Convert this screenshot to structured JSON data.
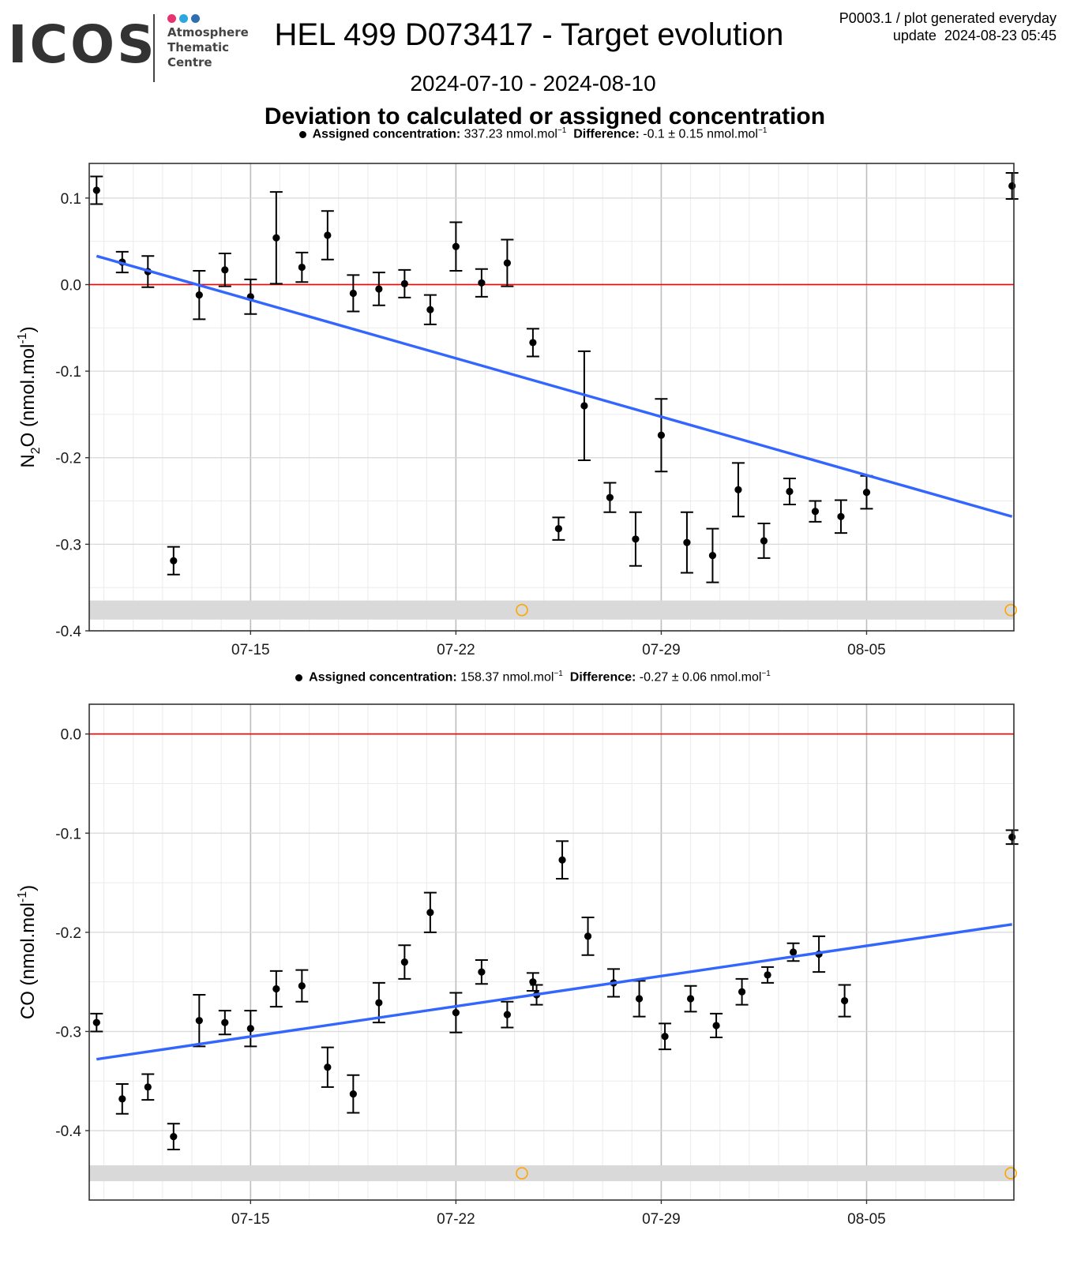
{
  "header": {
    "logo_text": "ICOS",
    "logo_subtitle": [
      "Atmosphere",
      "Thematic",
      "Centre"
    ],
    "logo_dot_colors": [
      "#e8336e",
      "#2fa7de",
      "#2f6fb0"
    ],
    "title": "HEL 499 D073417 - Target evolution",
    "corner_line1": "P0003.1 / plot generated everyday",
    "corner_line2": "update  2024-08-23 05:45",
    "date_range": "2024-07-10 - 2024-08-10",
    "subtitle": "Deviation to calculated or assigned concentration"
  },
  "colors": {
    "points": "#000000",
    "trend": "#3366ff",
    "zero": "#ff0000",
    "flag": "#ffa500",
    "band": "#d9d9d9"
  },
  "chart_data": [
    {
      "type": "scatter",
      "legend": {
        "assigned_label": "Assigned concentration:",
        "assigned_value": "337.23 nmol.mol",
        "diff_label": "Difference:",
        "diff_value": "-0.1 ± 0.15 nmol.mol",
        "unit_exp": "−1"
      },
      "ylabel_main": "N",
      "ylabel_sub": "2",
      "ylabel_rest": "O (nmol.mol",
      "ylabel_exp": "-1",
      "ylabel_close": ")",
      "ylim": [
        -0.4,
        0.14
      ],
      "yticks": [
        0.1,
        0.0,
        -0.1,
        -0.2,
        -0.3,
        -0.4
      ],
      "ytick_labels": [
        "0.1",
        "0.0",
        "-0.1",
        "-0.2",
        "-0.3",
        "-0.4"
      ],
      "xlim": [
        "2024-07-09T12:00",
        "2024-08-10T00:30"
      ],
      "xticks": [
        "2024-07-15",
        "2024-07-22",
        "2024-07-29",
        "2024-08-05"
      ],
      "xtick_labels": [
        "07-15",
        "07-22",
        "07-29",
        "08-05"
      ],
      "points": [
        {
          "x": "2024-07-09T18:00",
          "y": 0.109,
          "err": 0.016
        },
        {
          "x": "2024-07-10T15:00",
          "y": 0.026,
          "err": 0.012
        },
        {
          "x": "2024-07-11T12:00",
          "y": 0.015,
          "err": 0.018
        },
        {
          "x": "2024-07-12T09:00",
          "y": -0.319,
          "err": 0.016
        },
        {
          "x": "2024-07-13T06:00",
          "y": -0.012,
          "err": 0.028
        },
        {
          "x": "2024-07-14T03:00",
          "y": 0.017,
          "err": 0.019
        },
        {
          "x": "2024-07-15T00:00",
          "y": -0.014,
          "err": 0.02
        },
        {
          "x": "2024-07-15T21:00",
          "y": 0.054,
          "err": 0.053
        },
        {
          "x": "2024-07-16T18:00",
          "y": 0.02,
          "err": 0.017
        },
        {
          "x": "2024-07-17T15:00",
          "y": 0.057,
          "err": 0.028
        },
        {
          "x": "2024-07-18T12:00",
          "y": -0.01,
          "err": 0.021
        },
        {
          "x": "2024-07-19T09:00",
          "y": -0.005,
          "err": 0.019
        },
        {
          "x": "2024-07-20T06:00",
          "y": 0.001,
          "err": 0.016
        },
        {
          "x": "2024-07-21T03:00",
          "y": -0.029,
          "err": 0.017
        },
        {
          "x": "2024-07-22T00:00",
          "y": 0.044,
          "err": 0.028
        },
        {
          "x": "2024-07-22T21:00",
          "y": 0.002,
          "err": 0.016
        },
        {
          "x": "2024-07-23T18:00",
          "y": 0.025,
          "err": 0.027
        },
        {
          "x": "2024-07-24T15:00",
          "y": -0.067,
          "err": 0.016
        },
        {
          "x": "2024-07-25T12:00",
          "y": -0.282,
          "err": 0.013
        },
        {
          "x": "2024-07-26T09:00",
          "y": -0.14,
          "err": 0.063
        },
        {
          "x": "2024-07-27T06:00",
          "y": -0.246,
          "err": 0.017
        },
        {
          "x": "2024-07-28T03:00",
          "y": -0.294,
          "err": 0.031
        },
        {
          "x": "2024-07-29T00:00",
          "y": -0.174,
          "err": 0.042
        },
        {
          "x": "2024-07-29T21:00",
          "y": -0.298,
          "err": 0.035
        },
        {
          "x": "2024-07-30T18:00",
          "y": -0.313,
          "err": 0.031
        },
        {
          "x": "2024-07-31T15:00",
          "y": -0.237,
          "err": 0.031
        },
        {
          "x": "2024-08-01T12:00",
          "y": -0.296,
          "err": 0.02
        },
        {
          "x": "2024-08-02T09:00",
          "y": -0.239,
          "err": 0.015
        },
        {
          "x": "2024-08-03T06:00",
          "y": -0.262,
          "err": 0.012
        },
        {
          "x": "2024-08-04T03:00",
          "y": -0.268,
          "err": 0.019
        },
        {
          "x": "2024-08-05T00:00",
          "y": -0.24,
          "err": 0.019
        },
        {
          "x": "2024-08-09T23:00",
          "y": 0.114,
          "err": 0.015
        }
      ],
      "trend": [
        {
          "x": "2024-07-09T18:00",
          "y": 0.033
        },
        {
          "x": "2024-08-09T23:00",
          "y": -0.268
        }
      ],
      "band": {
        "y_low": -0.387,
        "y_high": -0.365
      },
      "flags": [
        {
          "x": "2024-07-24T06:00",
          "y": -0.376
        },
        {
          "x": "2024-08-09T22:00",
          "y": -0.376
        }
      ]
    },
    {
      "type": "scatter",
      "legend": {
        "assigned_label": "Assigned concentration:",
        "assigned_value": "158.37 nmol.mol",
        "diff_label": "Difference:",
        "diff_value": "-0.27 ± 0.06 nmol.mol",
        "unit_exp": "−1"
      },
      "ylabel_main": "CO (nmol.mol",
      "ylabel_sub": "",
      "ylabel_rest": "",
      "ylabel_exp": "-1",
      "ylabel_close": ")",
      "ylim": [
        -0.47,
        0.03
      ],
      "yticks": [
        0.0,
        -0.1,
        -0.2,
        -0.3,
        -0.4
      ],
      "ytick_labels": [
        "0.0",
        "-0.1",
        "-0.2",
        "-0.3",
        "-0.4"
      ],
      "xlim": [
        "2024-07-09T12:00",
        "2024-08-10T00:30"
      ],
      "xticks": [
        "2024-07-15",
        "2024-07-22",
        "2024-07-29",
        "2024-08-05"
      ],
      "xtick_labels": [
        "07-15",
        "07-22",
        "07-29",
        "08-05"
      ],
      "points": [
        {
          "x": "2024-07-09T18:00",
          "y": -0.291,
          "err": 0.009
        },
        {
          "x": "2024-07-10T15:00",
          "y": -0.368,
          "err": 0.015
        },
        {
          "x": "2024-07-11T12:00",
          "y": -0.356,
          "err": 0.013
        },
        {
          "x": "2024-07-12T09:00",
          "y": -0.406,
          "err": 0.013
        },
        {
          "x": "2024-07-13T06:00",
          "y": -0.289,
          "err": 0.026
        },
        {
          "x": "2024-07-14T03:00",
          "y": -0.291,
          "err": 0.012
        },
        {
          "x": "2024-07-15T00:00",
          "y": -0.297,
          "err": 0.018
        },
        {
          "x": "2024-07-15T21:00",
          "y": -0.257,
          "err": 0.018
        },
        {
          "x": "2024-07-16T18:00",
          "y": -0.254,
          "err": 0.016
        },
        {
          "x": "2024-07-17T15:00",
          "y": -0.336,
          "err": 0.02
        },
        {
          "x": "2024-07-18T12:00",
          "y": -0.363,
          "err": 0.019
        },
        {
          "x": "2024-07-19T09:00",
          "y": -0.271,
          "err": 0.02
        },
        {
          "x": "2024-07-20T06:00",
          "y": -0.23,
          "err": 0.017
        },
        {
          "x": "2024-07-21T03:00",
          "y": -0.18,
          "err": 0.02
        },
        {
          "x": "2024-07-22T00:00",
          "y": -0.281,
          "err": 0.02
        },
        {
          "x": "2024-07-22T21:00",
          "y": -0.24,
          "err": 0.012
        },
        {
          "x": "2024-07-23T18:00",
          "y": -0.283,
          "err": 0.013
        },
        {
          "x": "2024-07-24T15:00",
          "y": -0.25,
          "err": 0.009
        },
        {
          "x": "2024-07-24T18:00",
          "y": -0.263,
          "err": 0.01
        },
        {
          "x": "2024-07-25T15:00",
          "y": -0.127,
          "err": 0.019
        },
        {
          "x": "2024-07-26T12:00",
          "y": -0.204,
          "err": 0.019
        },
        {
          "x": "2024-07-27T09:00",
          "y": -0.251,
          "err": 0.014
        },
        {
          "x": "2024-07-28T06:00",
          "y": -0.267,
          "err": 0.018
        },
        {
          "x": "2024-07-29T03:00",
          "y": -0.305,
          "err": 0.013
        },
        {
          "x": "2024-07-30T00:00",
          "y": -0.267,
          "err": 0.013
        },
        {
          "x": "2024-07-30T21:00",
          "y": -0.294,
          "err": 0.012
        },
        {
          "x": "2024-07-31T18:00",
          "y": -0.26,
          "err": 0.013
        },
        {
          "x": "2024-08-01T15:00",
          "y": -0.243,
          "err": 0.008
        },
        {
          "x": "2024-08-02T12:00",
          "y": -0.22,
          "err": 0.009
        },
        {
          "x": "2024-08-03T09:00",
          "y": -0.222,
          "err": 0.018
        },
        {
          "x": "2024-08-04T06:00",
          "y": -0.269,
          "err": 0.016
        },
        {
          "x": "2024-08-09T23:00",
          "y": -0.104,
          "err": 0.007
        }
      ],
      "trend": [
        {
          "x": "2024-07-09T18:00",
          "y": -0.328
        },
        {
          "x": "2024-08-09T23:00",
          "y": -0.192
        }
      ],
      "band": {
        "y_low": -0.451,
        "y_high": -0.435
      },
      "flags": [
        {
          "x": "2024-07-24T06:00",
          "y": -0.443
        },
        {
          "x": "2024-08-09T22:00",
          "y": -0.443
        }
      ]
    }
  ]
}
